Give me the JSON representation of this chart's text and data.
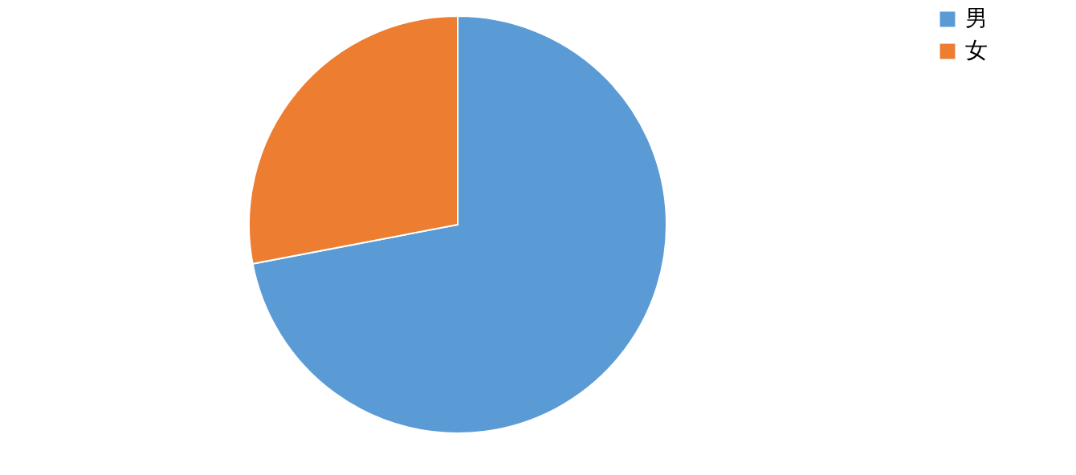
{
  "chart_data": {
    "type": "pie",
    "categories": [
      "男",
      "女"
    ],
    "values": [
      72,
      28
    ],
    "colors": [
      "#5b9bd5",
      "#ed7d31"
    ],
    "legend": "right"
  }
}
